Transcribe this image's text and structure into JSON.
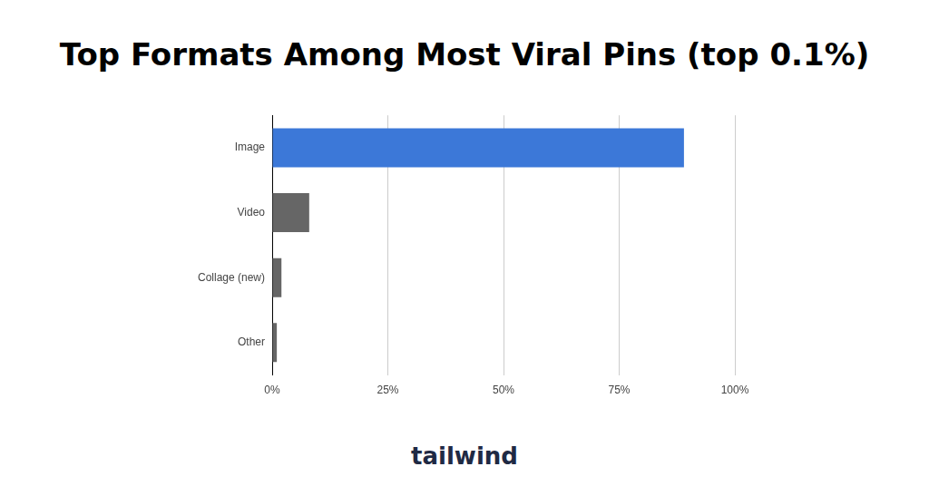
{
  "chart_data": {
    "type": "bar",
    "title": "Top Formats Among Most Viral Pins (top 0.1%)",
    "orientation": "horizontal",
    "categories": [
      "Image",
      "Video",
      "Collage (new)",
      "Other"
    ],
    "values": [
      89,
      8,
      2,
      1
    ],
    "colors": [
      "#3c78d8",
      "#666666",
      "#666666",
      "#666666"
    ],
    "xlim": [
      0,
      100
    ],
    "xticks": [
      {
        "value": 0,
        "label": "0%"
      },
      {
        "value": 25,
        "label": "25%"
      },
      {
        "value": 50,
        "label": "50%"
      },
      {
        "value": 75,
        "label": "75%"
      },
      {
        "value": 100,
        "label": "100%"
      }
    ],
    "grid": true,
    "footer": "tailwind"
  }
}
